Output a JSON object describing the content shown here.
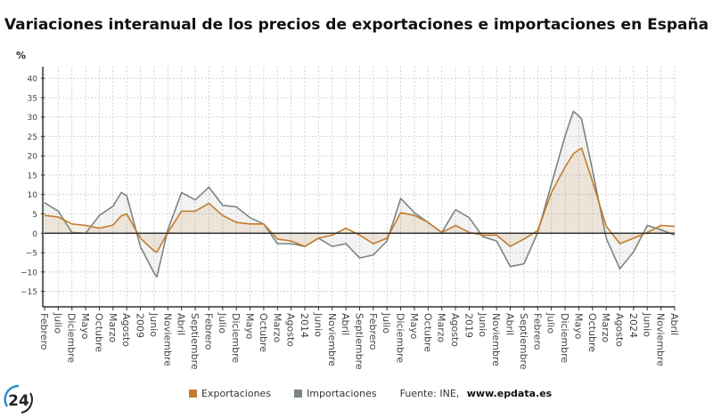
{
  "colors": {
    "exports": "#c27c2c",
    "imports": "#7b867e",
    "zero_line": "#333333",
    "grid": "#c8c8c8"
  },
  "logo": {
    "text": "24"
  },
  "chart_data": {
    "type": "line",
    "title": "Variaciones interanual de los precios de exportaciones e importaciones en España",
    "ylabel": "%",
    "ylim": [
      -19,
      43
    ],
    "yticks": [
      -15,
      -10,
      -5,
      0,
      5,
      10,
      15,
      20,
      25,
      30,
      35,
      40
    ],
    "xlim": [
      "2006-02",
      "2025-04"
    ],
    "grid": true,
    "legend_position": "bottom",
    "xticks": [
      {
        "date": "2006-02",
        "label": "Febrero"
      },
      {
        "date": "2006-07",
        "label": "Julio"
      },
      {
        "date": "2006-12",
        "label": "Diciembre"
      },
      {
        "date": "2007-05",
        "label": "Mayo"
      },
      {
        "date": "2007-10",
        "label": "Octubre"
      },
      {
        "date": "2008-03",
        "label": "Marzo"
      },
      {
        "date": "2008-08",
        "label": "Agosto"
      },
      {
        "date": "2009-01",
        "label": "2009"
      },
      {
        "date": "2009-06",
        "label": "Junio"
      },
      {
        "date": "2009-11",
        "label": "Noviembre"
      },
      {
        "date": "2010-04",
        "label": "Abril"
      },
      {
        "date": "2010-09",
        "label": "Septiembre"
      },
      {
        "date": "2011-02",
        "label": "Febrero"
      },
      {
        "date": "2011-07",
        "label": "Julio"
      },
      {
        "date": "2011-12",
        "label": "Diciembre"
      },
      {
        "date": "2012-05",
        "label": "Mayo"
      },
      {
        "date": "2012-10",
        "label": "Octubre"
      },
      {
        "date": "2013-03",
        "label": "Marzo"
      },
      {
        "date": "2013-08",
        "label": "Agosto"
      },
      {
        "date": "2014-01",
        "label": "2014"
      },
      {
        "date": "2014-06",
        "label": "Junio"
      },
      {
        "date": "2014-11",
        "label": "Noviembre"
      },
      {
        "date": "2015-04",
        "label": "Abril"
      },
      {
        "date": "2015-09",
        "label": "Septiembre"
      },
      {
        "date": "2016-02",
        "label": "Febrero"
      },
      {
        "date": "2016-07",
        "label": "Julio"
      },
      {
        "date": "2016-12",
        "label": "Diciembre"
      },
      {
        "date": "2017-05",
        "label": "Mayo"
      },
      {
        "date": "2017-10",
        "label": "Octubre"
      },
      {
        "date": "2018-03",
        "label": "Marzo"
      },
      {
        "date": "2018-08",
        "label": "Agosto"
      },
      {
        "date": "2019-01",
        "label": "2019"
      },
      {
        "date": "2019-06",
        "label": "Junio"
      },
      {
        "date": "2019-11",
        "label": "Noviembre"
      },
      {
        "date": "2020-04",
        "label": "Abril"
      },
      {
        "date": "2020-09",
        "label": "Septiembre"
      },
      {
        "date": "2021-02",
        "label": "Febrero"
      },
      {
        "date": "2021-07",
        "label": "Julio"
      },
      {
        "date": "2021-12",
        "label": "Diciembre"
      },
      {
        "date": "2022-05",
        "label": "Mayo"
      },
      {
        "date": "2022-10",
        "label": "Octubre"
      },
      {
        "date": "2023-03",
        "label": "Marzo"
      },
      {
        "date": "2023-08",
        "label": "Agosto"
      },
      {
        "date": "2024-01",
        "label": "2024"
      },
      {
        "date": "2024-06",
        "label": "Junio"
      },
      {
        "date": "2024-11",
        "label": "Noviembre"
      },
      {
        "date": "2025-04",
        "label": "Abril"
      }
    ],
    "series": [
      {
        "name": "Exportaciones",
        "points": [
          [
            "2006-02",
            4.6
          ],
          [
            "2006-07",
            4.2
          ],
          [
            "2006-12",
            2.4
          ],
          [
            "2007-05",
            2.0
          ],
          [
            "2007-10",
            1.3
          ],
          [
            "2008-03",
            2.1
          ],
          [
            "2008-06",
            4.5
          ],
          [
            "2008-08",
            5.0
          ],
          [
            "2009-01",
            -1.3
          ],
          [
            "2009-06",
            -4.6
          ],
          [
            "2009-07",
            -4.9
          ],
          [
            "2009-11",
            0.2
          ],
          [
            "2010-04",
            5.7
          ],
          [
            "2010-09",
            5.7
          ],
          [
            "2011-02",
            7.7
          ],
          [
            "2011-07",
            4.6
          ],
          [
            "2011-12",
            2.8
          ],
          [
            "2012-05",
            2.4
          ],
          [
            "2012-10",
            2.4
          ],
          [
            "2013-03",
            -1.5
          ],
          [
            "2013-08",
            -2.0
          ],
          [
            "2014-01",
            -3.4
          ],
          [
            "2014-06",
            -1.3
          ],
          [
            "2014-11",
            -0.5
          ],
          [
            "2015-04",
            1.3
          ],
          [
            "2015-09",
            -0.5
          ],
          [
            "2016-02",
            -2.7
          ],
          [
            "2016-07",
            -1.3
          ],
          [
            "2016-12",
            5.3
          ],
          [
            "2017-05",
            4.6
          ],
          [
            "2017-10",
            2.8
          ],
          [
            "2018-03",
            0.2
          ],
          [
            "2018-08",
            2.0
          ],
          [
            "2019-01",
            0.2
          ],
          [
            "2019-06",
            -0.5
          ],
          [
            "2019-11",
            -0.5
          ],
          [
            "2020-04",
            -3.4
          ],
          [
            "2020-09",
            -1.5
          ],
          [
            "2021-02",
            0.7
          ],
          [
            "2021-07",
            10.5
          ],
          [
            "2021-12",
            17.1
          ],
          [
            "2022-03",
            20.5
          ],
          [
            "2022-05",
            21.5
          ],
          [
            "2022-06",
            22.0
          ],
          [
            "2022-10",
            13.4
          ],
          [
            "2023-03",
            1.8
          ],
          [
            "2023-08",
            -2.7
          ],
          [
            "2024-01",
            -1.3
          ],
          [
            "2024-06",
            0.2
          ],
          [
            "2024-11",
            2.0
          ],
          [
            "2025-04",
            1.8
          ]
        ]
      },
      {
        "name": "Importaciones",
        "points": [
          [
            "2006-02",
            7.9
          ],
          [
            "2006-07",
            5.7
          ],
          [
            "2006-12",
            0.2
          ],
          [
            "2007-05",
            0.0
          ],
          [
            "2007-10",
            4.6
          ],
          [
            "2008-03",
            7.0
          ],
          [
            "2008-06",
            10.5
          ],
          [
            "2008-08",
            9.7
          ],
          [
            "2009-01",
            -3.5
          ],
          [
            "2009-06",
            -10.3
          ],
          [
            "2009-07",
            -11.3
          ],
          [
            "2009-11",
            0.9
          ],
          [
            "2010-04",
            10.5
          ],
          [
            "2010-09",
            8.6
          ],
          [
            "2011-02",
            11.9
          ],
          [
            "2011-07",
            7.2
          ],
          [
            "2011-12",
            6.8
          ],
          [
            "2012-05",
            4.0
          ],
          [
            "2012-10",
            2.4
          ],
          [
            "2013-03",
            -2.7
          ],
          [
            "2013-08",
            -2.7
          ],
          [
            "2014-01",
            -3.4
          ],
          [
            "2014-06",
            -1.3
          ],
          [
            "2014-11",
            -3.4
          ],
          [
            "2015-04",
            -2.7
          ],
          [
            "2015-09",
            -6.4
          ],
          [
            "2016-02",
            -5.6
          ],
          [
            "2016-07",
            -2.0
          ],
          [
            "2016-12",
            9.0
          ],
          [
            "2017-05",
            5.3
          ],
          [
            "2017-10",
            2.8
          ],
          [
            "2018-03",
            0.2
          ],
          [
            "2018-08",
            6.1
          ],
          [
            "2019-01",
            4.0
          ],
          [
            "2019-06",
            -0.9
          ],
          [
            "2019-11",
            -2.0
          ],
          [
            "2020-04",
            -8.6
          ],
          [
            "2020-09",
            -7.9
          ],
          [
            "2021-02",
            0.2
          ],
          [
            "2021-07",
            12.7
          ],
          [
            "2021-12",
            25.1
          ],
          [
            "2022-03",
            31.5
          ],
          [
            "2022-05",
            30.3
          ],
          [
            "2022-06",
            29.5
          ],
          [
            "2022-10",
            16.3
          ],
          [
            "2023-03",
            -1.3
          ],
          [
            "2023-08",
            -9.2
          ],
          [
            "2024-01",
            -4.8
          ],
          [
            "2024-06",
            2.0
          ],
          [
            "2024-11",
            0.9
          ],
          [
            "2025-04",
            -0.5
          ]
        ]
      }
    ]
  },
  "legend": {
    "exports": "Exportaciones",
    "imports": "Importaciones",
    "source_prefix": "Fuente: INE, ",
    "source_url": "www.epdata.es"
  }
}
